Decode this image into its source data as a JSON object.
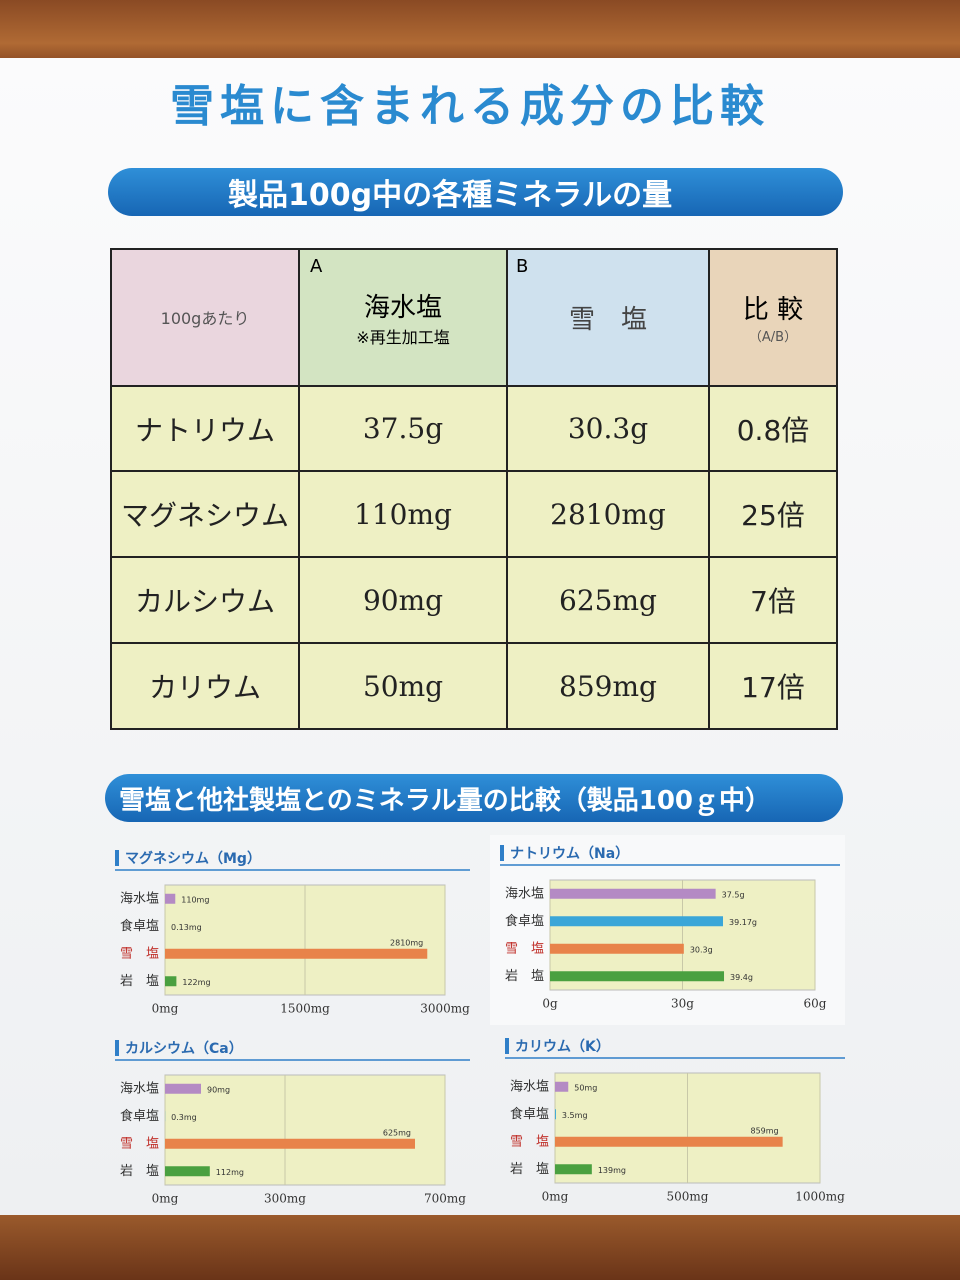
{
  "title": "雪塩に含まれる成分の比較",
  "section1": "製品100g中の各種ミネラルの量",
  "table": {
    "header": {
      "unit": "100gあたり",
      "a_mark": "A",
      "a_name": "海水塩",
      "a_note": "※再生加工塩",
      "b_mark": "B",
      "b_name": "雪　塩",
      "ratio": "比 較",
      "ratio_note": "（A/B）"
    },
    "rows": [
      [
        "ナトリウム",
        "37.5g",
        "30.3g",
        "0.8倍"
      ],
      [
        "マグネシウム",
        "110mg",
        "2810mg",
        "25倍"
      ],
      [
        "カルシウム",
        "90mg",
        "625mg",
        "7倍"
      ],
      [
        "カリウム",
        "50mg",
        "859mg",
        "17倍"
      ]
    ]
  },
  "section2": "雪塩と他社製塩とのミネラル量の比較（製品100ｇ中）",
  "chart_data": [
    {
      "type": "bar",
      "orientation": "horizontal",
      "title": "マグネシウム（Mg）",
      "categories": [
        "海水塩",
        "食卓塩",
        "雪　塩",
        "岩　塩"
      ],
      "label_colors": [
        "#333333",
        "#333333",
        "#c0302a",
        "#333333"
      ],
      "colors": [
        "#b48ac4",
        "#3aa6d8",
        "#e8834a",
        "#4aa040"
      ],
      "values": [
        110,
        0.13,
        2810,
        122
      ],
      "value_labels": [
        "110mg",
        "0.13mg",
        "2810mg",
        "122mg"
      ],
      "xlim": [
        0,
        3000
      ],
      "xticks": [
        {
          "value": 0,
          "label": "0mg"
        },
        {
          "value": 1500,
          "label": "1500mg"
        },
        {
          "value": 3000,
          "label": "3000mg"
        }
      ]
    },
    {
      "type": "bar",
      "orientation": "horizontal",
      "title": "ナトリウム（Na）",
      "categories": [
        "海水塩",
        "食卓塩",
        "雪　塩",
        "岩　塩"
      ],
      "label_colors": [
        "#333333",
        "#333333",
        "#c0302a",
        "#333333"
      ],
      "colors": [
        "#b48ac4",
        "#3aa6d8",
        "#e8834a",
        "#4aa040"
      ],
      "values": [
        37.5,
        39.17,
        30.3,
        39.4
      ],
      "value_labels": [
        "37.5g",
        "39.17g",
        "30.3g",
        "39.4g"
      ],
      "xlim": [
        0,
        60
      ],
      "xticks": [
        {
          "value": 0,
          "label": "0g"
        },
        {
          "value": 30,
          "label": "30g"
        },
        {
          "value": 60,
          "label": "60g"
        }
      ]
    },
    {
      "type": "bar",
      "orientation": "horizontal",
      "title": "カルシウム（Ca）",
      "categories": [
        "海水塩",
        "食卓塩",
        "雪　塩",
        "岩　塩"
      ],
      "label_colors": [
        "#333333",
        "#333333",
        "#c0302a",
        "#333333"
      ],
      "colors": [
        "#b48ac4",
        "#3aa6d8",
        "#e8834a",
        "#4aa040"
      ],
      "values": [
        90,
        0.3,
        625,
        112
      ],
      "value_labels": [
        "90mg",
        "0.3mg",
        "625mg",
        "112mg"
      ],
      "xlim": [
        0,
        700
      ],
      "xticks": [
        {
          "value": 0,
          "label": "0mg"
        },
        {
          "value": 300,
          "label": "300mg"
        },
        {
          "value": 700,
          "label": "700mg"
        }
      ]
    },
    {
      "type": "bar",
      "orientation": "horizontal",
      "title": "カリウム（K）",
      "categories": [
        "海水塩",
        "食卓塩",
        "雪　塩",
        "岩　塩"
      ],
      "label_colors": [
        "#333333",
        "#333333",
        "#c0302a",
        "#333333"
      ],
      "colors": [
        "#b48ac4",
        "#3aa6d8",
        "#e8834a",
        "#4aa040"
      ],
      "values": [
        50,
        3.5,
        859,
        139
      ],
      "value_labels": [
        "50mg",
        "3.5mg",
        "859mg",
        "139mg"
      ],
      "xlim": [
        0,
        1000
      ],
      "xticks": [
        {
          "value": 0,
          "label": "0mg"
        },
        {
          "value": 500,
          "label": "500mg"
        },
        {
          "value": 1000,
          "label": "1000mg"
        }
      ]
    }
  ]
}
